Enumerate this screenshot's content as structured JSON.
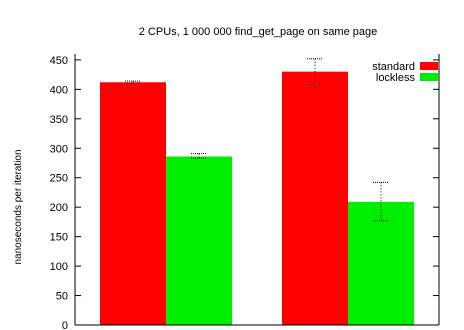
{
  "chart_data": {
    "type": "bar",
    "title": "2 CPUs, 1 000 000 find_get_page on same page",
    "xlabel": "",
    "ylabel": "nanoseconds per iteration",
    "categories": [
      "",
      ""
    ],
    "ylim": [
      0,
      460
    ],
    "yticks": [
      0,
      50,
      100,
      150,
      200,
      250,
      300,
      350,
      400,
      450
    ],
    "grid": false,
    "legend_position": "top-right",
    "series": [
      {
        "name": "standard",
        "color": "#ff0000",
        "values": [
          412,
          430
        ],
        "error_low": [
          410,
          408
        ],
        "error_high": [
          414,
          452
        ]
      },
      {
        "name": "lockless",
        "color": "#00ee00",
        "values": [
          286,
          209
        ],
        "error_low": [
          283,
          177
        ],
        "error_high": [
          291,
          242
        ]
      }
    ]
  }
}
